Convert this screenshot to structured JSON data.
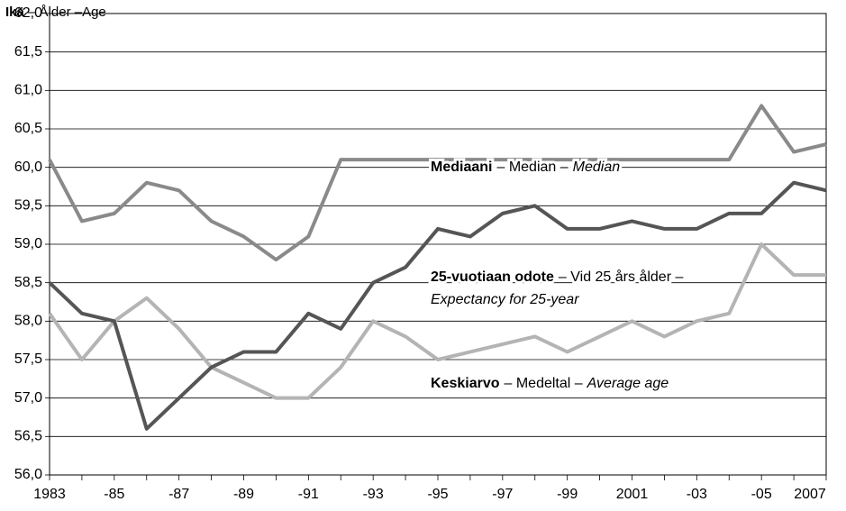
{
  "chart_data": {
    "type": "line",
    "ylabel": [
      "Ikä",
      "– Ålder –Age"
    ],
    "categories": [
      "1983",
      null,
      "-85",
      null,
      "-87",
      null,
      "-89",
      null,
      "-91",
      null,
      "-93",
      null,
      "-95",
      null,
      "-97",
      null,
      "-99",
      null,
      "2001",
      null,
      "-03",
      null,
      "-05",
      null,
      "2007"
    ],
    "ylim": [
      56.0,
      62.0
    ],
    "yticks": [
      {
        "value": 56.0,
        "label": "56,0"
      },
      {
        "value": 56.5,
        "label": "56,5"
      },
      {
        "value": 57.0,
        "label": "57,0"
      },
      {
        "value": 57.5,
        "label": "57,5"
      },
      {
        "value": 58.0,
        "label": "58,0"
      },
      {
        "value": 58.5,
        "label": "58,5"
      },
      {
        "value": 59.0,
        "label": "59,0"
      },
      {
        "value": 59.5,
        "label": "59,5"
      },
      {
        "value": 60.0,
        "label": "60,0"
      },
      {
        "value": 60.5,
        "label": "60,5"
      },
      {
        "value": 61.0,
        "label": "61,0"
      },
      {
        "value": 61.5,
        "label": "61,5"
      },
      {
        "value": 62.0,
        "label": "62,0"
      }
    ],
    "grid": true,
    "series": [
      {
        "name": [
          "Mediaani",
          "– Median –",
          "Median"
        ],
        "color": "#8a8a8a",
        "values": [
          60.1,
          59.3,
          59.4,
          59.8,
          59.7,
          59.3,
          59.1,
          58.8,
          59.1,
          60.1,
          60.1,
          60.1,
          60.1,
          60.1,
          60.1,
          60.1,
          60.1,
          60.1,
          60.1,
          60.1,
          60.1,
          60.1,
          60.8,
          60.2,
          60.3
        ]
      },
      {
        "name": [
          "Keskiarvo",
          "– Medeltal –",
          "Average age"
        ],
        "color": "#b4b4b4",
        "values": [
          58.1,
          57.5,
          58.0,
          58.3,
          57.9,
          57.4,
          57.2,
          57.0,
          57.0,
          57.4,
          58.0,
          57.8,
          57.5,
          57.6,
          57.7,
          57.8,
          57.6,
          57.8,
          58.0,
          57.8,
          58.0,
          58.1,
          59.0,
          58.6,
          58.6
        ]
      },
      {
        "name": [
          "25-vuotiaan odote",
          "– Vid 25 års ålder –",
          "Expectancy for 25-year"
        ],
        "color": "#555555",
        "values": [
          58.5,
          58.1,
          58.0,
          56.6,
          57.0,
          57.4,
          57.6,
          57.6,
          58.1,
          57.9,
          58.5,
          58.7,
          59.2,
          59.1,
          59.4,
          59.5,
          59.2,
          59.2,
          59.3,
          59.2,
          59.2,
          59.4,
          59.4,
          59.8,
          59.7
        ]
      }
    ]
  }
}
